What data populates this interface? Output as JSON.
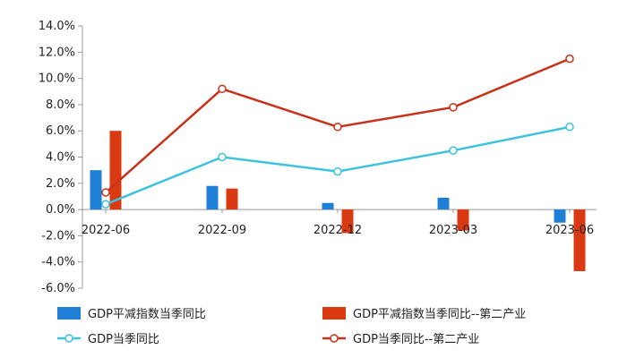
{
  "chart_data": {
    "type": "bar+line",
    "categories": [
      "2022-06",
      "2022-09",
      "2022-12",
      "2023-03",
      "2023-06"
    ],
    "ylim": [
      -6.0,
      14.0
    ],
    "yticks": [
      "14.0%",
      "12.0%",
      "10.0%",
      "8.0%",
      "6.0%",
      "4.0%",
      "2.0%",
      "0.0%",
      "-2.0%",
      "-4.0%",
      "-6.0%"
    ],
    "ytick_values": [
      14,
      12,
      10,
      8,
      6,
      4,
      2,
      0,
      -2,
      -4,
      -6
    ],
    "grid": false,
    "legend_position": "bottom",
    "series": [
      {
        "name": "GDP平减指数当季同比",
        "kind": "bar",
        "color": "#1f7fd6",
        "values": [
          3.0,
          1.8,
          0.5,
          0.9,
          -1.0
        ]
      },
      {
        "name": "GDP平减指数当季同比--第二产业",
        "kind": "bar",
        "color": "#d93a12",
        "values": [
          6.0,
          1.6,
          -1.8,
          -1.6,
          -4.7
        ]
      },
      {
        "name": "GDP当季同比",
        "kind": "line",
        "color": "#3cc2dd",
        "values": [
          0.4,
          4.0,
          2.9,
          4.5,
          6.3
        ]
      },
      {
        "name": "GDP当季同比--第二产业",
        "kind": "line",
        "color": "#c8321a",
        "values": [
          1.3,
          9.2,
          6.3,
          7.8,
          11.5
        ]
      }
    ]
  }
}
